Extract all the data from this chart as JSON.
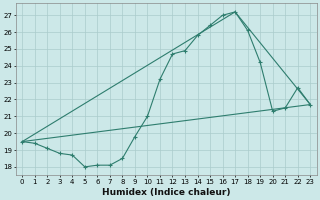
{
  "title": "",
  "xlabel": "Humidex (Indice chaleur)",
  "bg_color": "#cce8e8",
  "grid_color": "#aacccc",
  "line_color": "#2e7d6e",
  "xlim": [
    -0.5,
    23.5
  ],
  "ylim": [
    17.5,
    27.7
  ],
  "yticks": [
    18,
    19,
    20,
    21,
    22,
    23,
    24,
    25,
    26,
    27
  ],
  "xticks": [
    0,
    1,
    2,
    3,
    4,
    5,
    6,
    7,
    8,
    9,
    10,
    11,
    12,
    13,
    14,
    15,
    16,
    17,
    18,
    19,
    20,
    21,
    22,
    23
  ],
  "line1_x": [
    0,
    1,
    2,
    3,
    4,
    5,
    6,
    7,
    8,
    9,
    10,
    11,
    12,
    13,
    14,
    15,
    16,
    17,
    18,
    19,
    20,
    21,
    22,
    23
  ],
  "line1_y": [
    19.5,
    19.4,
    19.1,
    18.8,
    18.7,
    18.0,
    18.1,
    18.1,
    18.5,
    19.8,
    21.0,
    23.2,
    24.7,
    24.9,
    25.8,
    26.4,
    27.0,
    27.2,
    26.1,
    24.2,
    21.3,
    21.5,
    22.7,
    21.7
  ],
  "line3_x": [
    0,
    23
  ],
  "line3_y": [
    19.5,
    21.7
  ],
  "line4_x": [
    0,
    17,
    23
  ],
  "line4_y": [
    19.5,
    27.2,
    21.7
  ]
}
